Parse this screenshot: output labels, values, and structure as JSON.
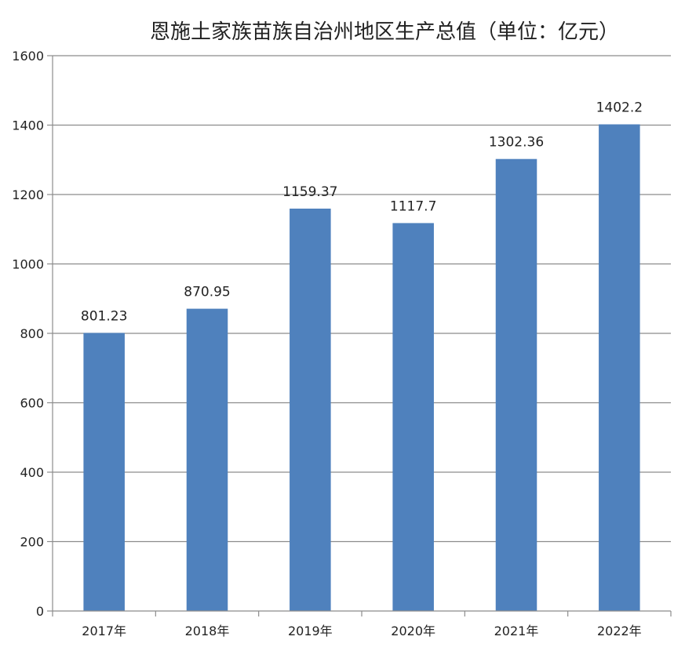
{
  "chart_data": {
    "type": "bar",
    "title": "恩施土家族苗族自治州地区生产总值（单位：亿元）",
    "xlabel": "",
    "ylabel": "",
    "categories": [
      "2017年",
      "2018年",
      "2019年",
      "2020年",
      "2021年",
      "2022年"
    ],
    "values": [
      801.23,
      870.95,
      1159.37,
      1117.7,
      1302.36,
      1402.2
    ],
    "data_labels": [
      "801.23",
      "870.95",
      "1159.37",
      "1117.7",
      "1302.36",
      "1402.2"
    ],
    "ylim": [
      0,
      1600
    ],
    "yticks": [
      0,
      200,
      400,
      600,
      800,
      1000,
      1200,
      1400,
      1600
    ],
    "grid": true,
    "legend": "none",
    "bar_color": "#4f81bd",
    "grid_color": "#8c8c8c",
    "axis_color": "#8c8c8c"
  }
}
